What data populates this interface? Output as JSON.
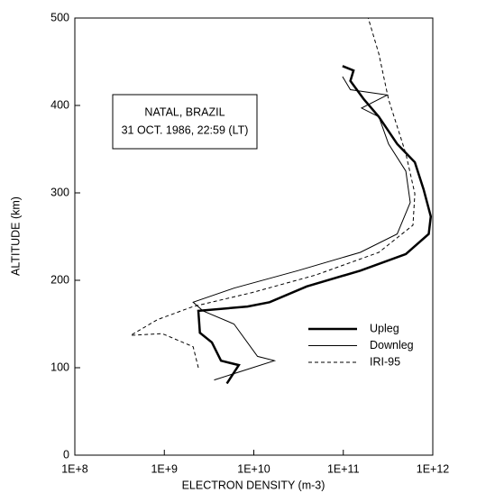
{
  "chart_data": {
    "type": "line",
    "xlabel": "ELECTRON DENSITY (m-3)",
    "ylabel": "ALTITUDE (km)",
    "annotation": [
      "NATAL, BRAZIL",
      "31 OCT. 1986, 22:59 (LT)"
    ],
    "xscale": "log",
    "xlim": [
      100000000,
      1000000000000
    ],
    "xticks": [
      {
        "value": 100000000,
        "label": "1E+8"
      },
      {
        "value": 1000000000,
        "label": "1E+9"
      },
      {
        "value": 10000000000,
        "label": "1E+10"
      },
      {
        "value": 100000000000,
        "label": "1E+11"
      },
      {
        "value": 1000000000000,
        "label": "1E+12"
      }
    ],
    "ylim": [
      0,
      500
    ],
    "yticks": [
      0,
      100,
      200,
      300,
      400,
      500
    ],
    "legend": "lower right",
    "series": [
      {
        "name": "Upleg",
        "color": "#000000",
        "linewidth": 2.5,
        "dashed": false,
        "x": [
          5000000000,
          6800000000,
          4300000000,
          3400000000,
          2500000000,
          2400000000,
          8500000000,
          15000000000,
          39000000000,
          155000000000,
          500000000000,
          900000000000,
          950000000000,
          790000000000,
          630000000000,
          400000000000,
          250000000000,
          170000000000,
          120000000000,
          130000000000,
          98000000000
        ],
        "values": [
          82,
          103,
          108,
          129,
          140,
          165,
          170,
          175,
          193,
          211,
          230,
          253,
          273,
          304,
          335,
          356,
          387,
          407,
          428,
          440,
          445
        ]
      },
      {
        "name": "Downleg",
        "color": "#000000",
        "linewidth": 1,
        "dashed": false,
        "x": [
          3600000000,
          17000000000,
          11000000000,
          6000000000,
          2700000000,
          2100000000,
          6000000000,
          31000000000,
          155000000000,
          400000000000,
          560000000000,
          500000000000,
          320000000000,
          250000000000,
          160000000000,
          310000000000,
          120000000000,
          98000000000
        ],
        "values": [
          86,
          108,
          113,
          150,
          165,
          175,
          191,
          211,
          232,
          253,
          289,
          325,
          356,
          387,
          397,
          412,
          418,
          433
        ]
      },
      {
        "name": "IRI-95",
        "color": "#000000",
        "linewidth": 1,
        "dashed": true,
        "x": [
          2400000000,
          2100000000,
          950000000,
          420000000,
          840000000,
          2100000000,
          9600000000,
          49000000000,
          250000000000,
          600000000000,
          630000000000,
          500000000000,
          320000000000,
          250000000000,
          190000000000
        ],
        "values": [
          100,
          124,
          139,
          137,
          155,
          170,
          186,
          206,
          232,
          263,
          299,
          345,
          407,
          459,
          500
        ]
      }
    ]
  }
}
